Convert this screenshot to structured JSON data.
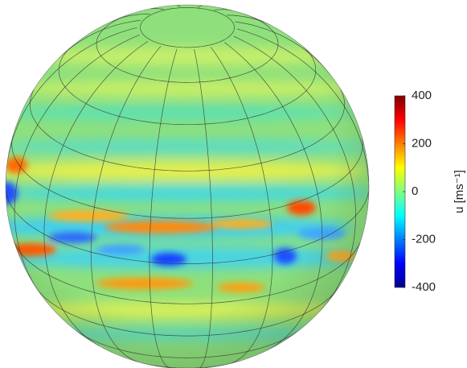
{
  "chart_data": {
    "type": "surface",
    "colorbar_label": "u [ms⁻¹]",
    "ylim": [
      -400,
      400
    ],
    "yticks": [
      400,
      200,
      0,
      -200,
      -400
    ]
  }
}
